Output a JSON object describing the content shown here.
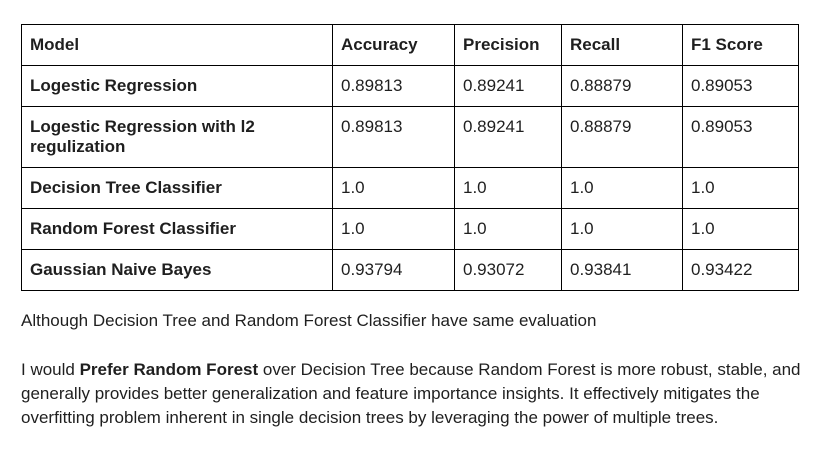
{
  "table": {
    "headers": [
      "Model",
      "Accuracy",
      "Precision",
      "Recall",
      "F1 Score"
    ],
    "rows": [
      {
        "model": "Logestic Regression",
        "accuracy": "0.89813",
        "precision": "0.89241",
        "recall": "0.88879",
        "f1": "0.89053"
      },
      {
        "model": "Logestic Regression with l2 regulization",
        "accuracy": "0.89813",
        "precision": "0.89241",
        "recall": "0.88879",
        "f1": "0.89053"
      },
      {
        "model": "Decision Tree Classifier",
        "accuracy": "1.0",
        "precision": "1.0",
        "recall": "1.0",
        "f1": "1.0"
      },
      {
        "model": "Random Forest Classifier",
        "accuracy": "1.0",
        "precision": "1.0",
        "recall": "1.0",
        "f1": "1.0"
      },
      {
        "model": "Gaussian Naive Bayes",
        "accuracy": "0.93794",
        "precision": "0.93072",
        "recall": "0.93841",
        "f1": "0.93422"
      }
    ]
  },
  "paragraphs": {
    "p1": "Although Decision Tree and Random Forest Classifier have same evaluation",
    "p2_prefix": "I would ",
    "p2_bold": "Prefer Random Forest",
    "p2_suffix": " over Decision Tree because Random Forest is more robust, stable, and generally provides better generalization and feature importance insights. It effectively mitigates the overfitting problem inherent in single decision trees by leveraging the power of multiple trees."
  }
}
